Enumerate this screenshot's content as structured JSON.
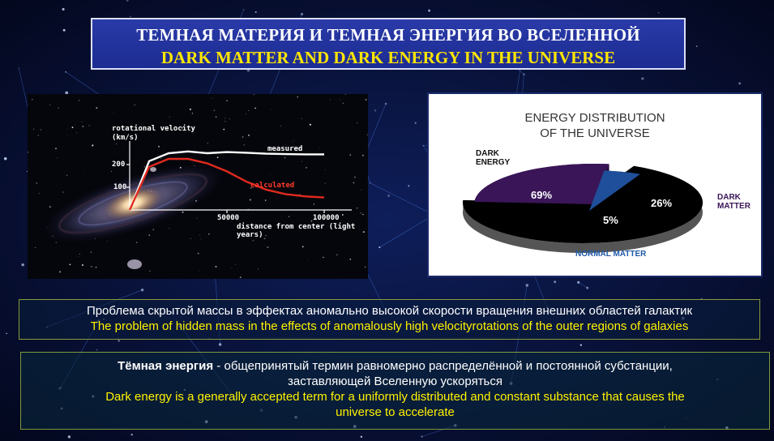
{
  "title": {
    "ru": "ТЕМНАЯ МАТЕРИЯ И ТЕМНАЯ ЭНЕРГИЯ ВО ВСЕЛЕННОЙ",
    "en": "DARK MATTER AND DARK ENERGY IN THE UNIVERSE"
  },
  "rotation_chart": {
    "y_label_1": "rotational velocity",
    "y_label_2": "(km/s)",
    "y_ticks": [
      "200",
      "100"
    ],
    "x_ticks": [
      "50000",
      "100000"
    ],
    "x_label": "distance from center (light years)",
    "series_measured": "measured",
    "series_calculated": "calculated"
  },
  "pie": {
    "title_1": "ENERGY DISTRIBUTION",
    "title_2": "OF THE UNIVERSE",
    "dark_energy_label_1": "DARK",
    "dark_energy_label_2": "ENERGY",
    "dark_matter_label_1": "DARK",
    "dark_matter_label_2": "MATTER",
    "normal_matter_label": "NORMAL MATTER",
    "dark_energy_pct": "69%",
    "dark_matter_pct": "26%",
    "normal_matter_pct": "5%"
  },
  "chart_data": [
    {
      "type": "line",
      "xlabel": "distance from center (light years)",
      "ylabel": "rotational velocity (km/s)",
      "x_ticks": [
        50000,
        100000
      ],
      "y_ticks": [
        100,
        200
      ],
      "series": [
        {
          "name": "measured",
          "x": [
            0,
            10000,
            20000,
            30000,
            40000,
            50000,
            60000,
            70000,
            80000,
            90000,
            100000
          ],
          "y": [
            0,
            215,
            250,
            258,
            250,
            255,
            252,
            248,
            246,
            245,
            245
          ],
          "color": "#ffffff"
        },
        {
          "name": "calculated",
          "x": [
            0,
            10000,
            20000,
            30000,
            40000,
            50000,
            60000,
            70000,
            80000,
            90000,
            100000
          ],
          "y": [
            0,
            190,
            225,
            225,
            205,
            170,
            125,
            90,
            70,
            60,
            55
          ],
          "color": "#e02a1e"
        }
      ]
    },
    {
      "type": "pie",
      "title": "ENERGY DISTRIBUTION OF THE UNIVERSE",
      "categories": [
        "DARK ENERGY",
        "DARK MATTER",
        "NORMAL MATTER"
      ],
      "values": [
        69,
        26,
        5
      ],
      "colors": [
        "#000000",
        "#3a1558",
        "#1f4f9a"
      ]
    }
  ],
  "caption": {
    "ru": "Проблема скрытой массы в эффектах аномально высокой скорости вращения внешних областей галактик",
    "en": "The problem of hidden mass in the effects of anomalously high velocityrotations of the outer regions of galaxies"
  },
  "definition": {
    "ru_term": "Тёмная энергия",
    "ru_text_1": " - общепринятый термин равномерно распределённой и постоянной субстанции,",
    "ru_text_2": "заставляющей Вселенную ускоряться",
    "en_1": "Dark energy is a generally accepted term for a uniformly distributed and constant substance that causes the",
    "en_2": "universe to accelerate"
  }
}
